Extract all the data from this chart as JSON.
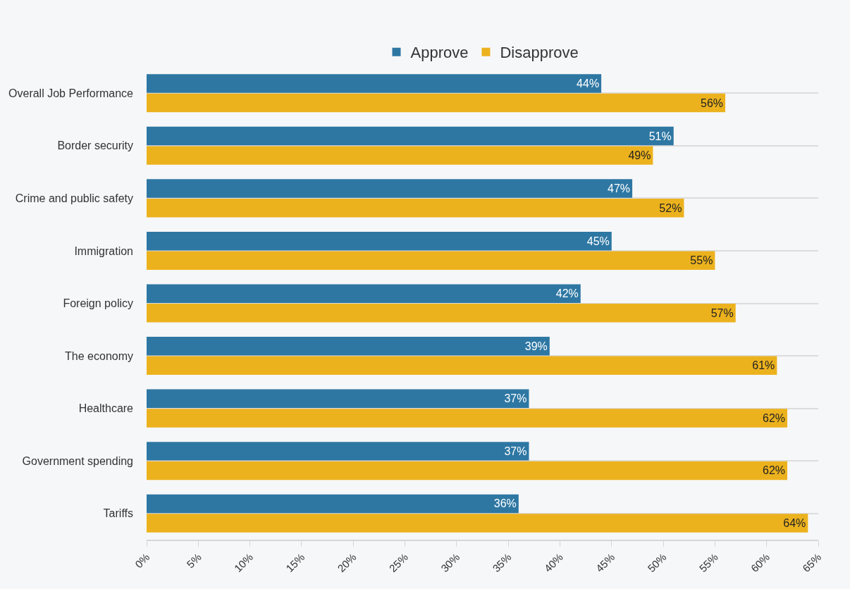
{
  "chart_data": {
    "type": "bar",
    "orientation": "horizontal",
    "categories": [
      "Overall Job Performance",
      "Border security",
      "Crime and public safety",
      "Immigration",
      "Foreign policy",
      "The economy",
      "Healthcare",
      "Government spending",
      "Tariffs"
    ],
    "series": [
      {
        "name": "Approve",
        "color": "#2e77a3",
        "values": [
          44,
          51,
          47,
          45,
          42,
          39,
          37,
          37,
          36
        ],
        "value_labels": [
          "44%",
          "51%",
          "47%",
          "45%",
          "42%",
          "39%",
          "37%",
          "37%",
          "36%"
        ]
      },
      {
        "name": "Disapprove",
        "color": "#ecb21e",
        "values": [
          56,
          49,
          52,
          55,
          57,
          61,
          62,
          62,
          64
        ],
        "value_labels": [
          "56%",
          "49%",
          "52%",
          "55%",
          "57%",
          "61%",
          "62%",
          "62%",
          "64%"
        ]
      }
    ],
    "xlim": [
      0,
      65
    ],
    "xticks": [
      {
        "value": 0,
        "label": "0%"
      },
      {
        "value": 5,
        "label": "5%"
      },
      {
        "value": 10,
        "label": "10%"
      },
      {
        "value": 15,
        "label": "15%"
      },
      {
        "value": 20,
        "label": "20%"
      },
      {
        "value": 25,
        "label": "25%"
      },
      {
        "value": 30,
        "label": "30%"
      },
      {
        "value": 35,
        "label": "35%"
      },
      {
        "value": 40,
        "label": "40%"
      },
      {
        "value": 45,
        "label": "45%"
      },
      {
        "value": 50,
        "label": "50%"
      },
      {
        "value": 55,
        "label": "55%"
      },
      {
        "value": 60,
        "label": "60%"
      },
      {
        "value": 65,
        "label": "65%"
      }
    ],
    "grid": "y",
    "legend": "top"
  }
}
